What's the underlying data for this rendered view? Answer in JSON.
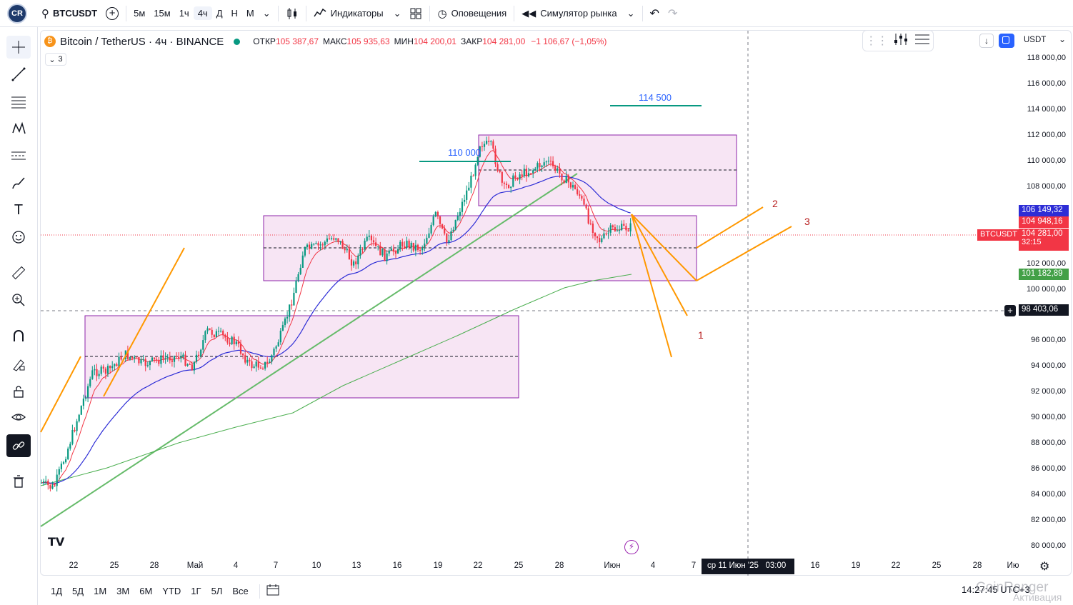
{
  "topbar": {
    "symbol": "BTCUSDT",
    "timeframes": [
      "5м",
      "15м",
      "1ч",
      "4ч",
      "Д",
      "Н",
      "М"
    ],
    "active_timeframe": "4ч",
    "indicators": "Индикаторы",
    "alerts": "Оповещения",
    "replay": "Симулятор рынка"
  },
  "legend": {
    "pair": "Bitcoin / TetherUS · 4ч · BINANCE",
    "open_label": "ОТКР",
    "open": "105 387,67",
    "high_label": "МАКС",
    "high": "105 935,63",
    "low_label": "МИН",
    "low": "104 200,01",
    "close_label": "ЗАКР",
    "close": "104 281,00",
    "change": "−1 106,67 (−1,05%)",
    "collapsed_count": "3"
  },
  "price_axis": {
    "currency": "USDT",
    "labels": [
      "118 000,00",
      "116 000,00",
      "114 000,00",
      "112 000,00",
      "110 000,00",
      "108 000,00",
      "102 000,00",
      "100 000,00",
      "96 000,00",
      "94 000,00",
      "92 000,00",
      "90 000,00",
      "88 000,00",
      "86 000,00",
      "84 000,00",
      "82 000,00",
      "80 000,00"
    ]
  },
  "tags": {
    "ma_blue": "106 149,32",
    "price_high": "104 948,16",
    "last_price": "104 281,00",
    "countdown": "32:15",
    "symbol_tag": "BTCUSDT",
    "ma_green": "101 182,89",
    "crosshair_price": "98 403,06"
  },
  "time_axis": {
    "labels": [
      "22",
      "25",
      "28",
      "Май",
      "4",
      "7",
      "10",
      "13",
      "16",
      "19",
      "22",
      "25",
      "28",
      "Июн",
      "4",
      "7",
      "16",
      "19",
      "22",
      "25",
      "28",
      "Ию"
    ],
    "crosshair_time": "ср 11 Июн '25   03:00"
  },
  "annotations": {
    "level_110": "110 000",
    "level_114": "114 500",
    "wave_1": "1",
    "wave_2": "2",
    "wave_3": "3"
  },
  "bottombar": {
    "ranges": [
      "1Д",
      "5Д",
      "1М",
      "3М",
      "6М",
      "YTD",
      "1Г",
      "5Л",
      "Все"
    ],
    "clock": "14:27:45 UTC+3",
    "watermark": "CoinRanger",
    "activation": "Активация"
  },
  "colors": {
    "up": "#089981",
    "down": "#f23645",
    "ma_fast": "#f23645",
    "ma_mid": "#2d2dd6",
    "ma_slow": "#4caf50",
    "trend": "#66bb6a",
    "box_fill": "#f7e5f4",
    "box_border": "#8e24aa",
    "projection": "#ff9800",
    "level_line": "#089981",
    "level_text": "#2962ff"
  }
}
